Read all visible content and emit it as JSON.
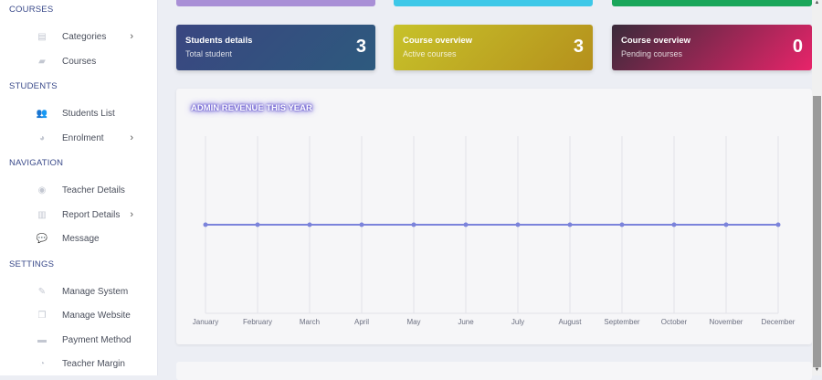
{
  "sidebar": {
    "sections": [
      {
        "title": "COURSES",
        "items": [
          {
            "label": "Categories",
            "icon": "table-icon",
            "chevron": true
          },
          {
            "label": "Courses",
            "icon": "book-icon",
            "chevron": false
          }
        ]
      },
      {
        "title": "STUDENTS",
        "items": [
          {
            "label": "Students List",
            "icon": "users-icon",
            "chevron": false
          },
          {
            "label": "Enrolment",
            "icon": "pie-chart-icon",
            "chevron": true
          }
        ]
      },
      {
        "title": "NAVIGATION",
        "items": [
          {
            "label": "Teacher Details",
            "icon": "chrome-icon",
            "chevron": false
          },
          {
            "label": "Report Details",
            "icon": "report-icon",
            "chevron": true
          },
          {
            "label": "Message",
            "icon": "chat-icon",
            "chevron": false
          }
        ]
      },
      {
        "title": "SETTINGS",
        "items": [
          {
            "label": "Manage System",
            "icon": "tools-icon",
            "chevron": false
          },
          {
            "label": "Manage Website",
            "icon": "copy-icon",
            "chevron": false
          },
          {
            "label": "Payment Method",
            "icon": "credit-card-icon",
            "chevron": false
          },
          {
            "label": "Teacher Margin",
            "icon": "pie-icon",
            "chevron": false
          }
        ]
      }
    ]
  },
  "cards": [
    {
      "title": "Students details",
      "subtitle": "Total student",
      "value": "3",
      "gradient": [
        "#3a4680",
        "#2d5a7e"
      ]
    },
    {
      "title": "Course overview",
      "subtitle": "Active courses",
      "value": "3",
      "gradient": [
        "#c7c22a",
        "#b5901c"
      ]
    },
    {
      "title": "Course overview",
      "subtitle": "Pending courses",
      "value": "0",
      "gradient": [
        "#3a2a3a",
        "#e8246a"
      ]
    }
  ],
  "top_strips": [
    "#a98fd6",
    "#3ec8e8",
    "#1aa65a"
  ],
  "chart": {
    "title": "ADMIN REVENUE THIS YEAR",
    "line_color": "#7b83db"
  },
  "chart_data": {
    "type": "line",
    "title": "ADMIN REVENUE THIS YEAR",
    "categories": [
      "January",
      "February",
      "March",
      "April",
      "May",
      "June",
      "July",
      "August",
      "September",
      "October",
      "November",
      "December"
    ],
    "series": [
      {
        "values": [
          0,
          0,
          0,
          0,
          0,
          0,
          0,
          0,
          0,
          0,
          0,
          0
        ]
      }
    ],
    "ylim": [
      -1,
      1
    ],
    "grid": "vertical"
  }
}
